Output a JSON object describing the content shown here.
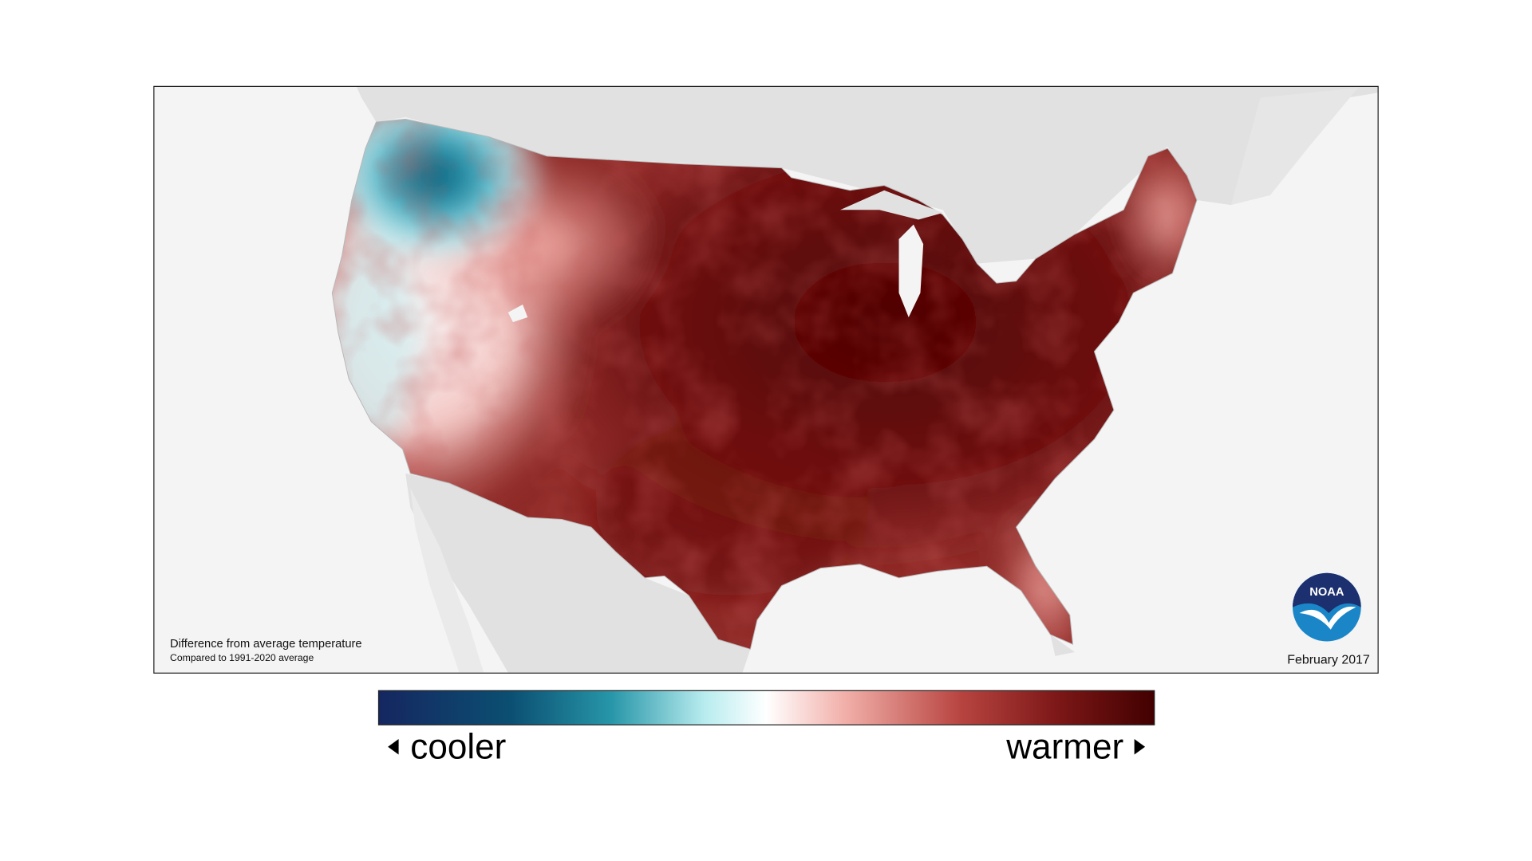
{
  "map": {
    "caption_title": "Difference from average temperature",
    "caption_subtitle": "Compared to 1991-2020 average",
    "date": "February 2017"
  },
  "logo": {
    "text": "NOAA"
  },
  "legend": {
    "low_label": "cooler",
    "high_label": "warmer"
  }
}
